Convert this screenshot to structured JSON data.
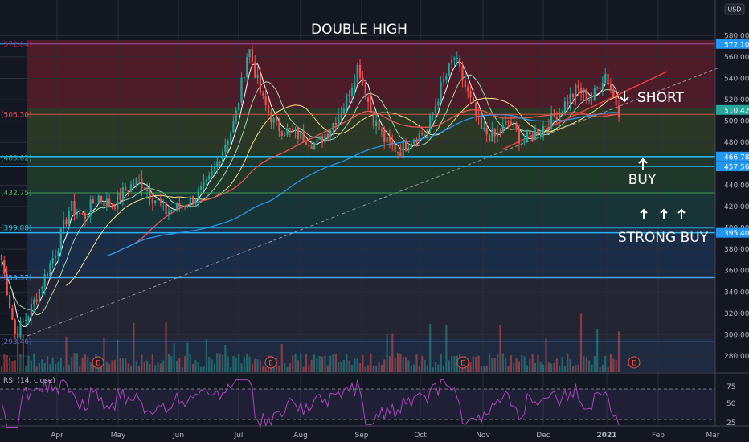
{
  "chart_data": {
    "type": "candlestick",
    "title": "DOUBLE HIGH",
    "currency": "USD",
    "y_ticks": [
      280,
      300,
      320,
      340,
      360,
      380,
      400,
      420,
      440,
      460,
      480,
      500,
      520,
      540,
      560,
      580
    ],
    "ylim": [
      265,
      587
    ],
    "x_labels": [
      "Apr",
      "May",
      "Jun",
      "Jul",
      "Aug",
      "Sep",
      "Oct",
      "Nov",
      "Dec",
      "2021",
      "Feb",
      "Mar"
    ],
    "fib_levels": [
      {
        "label": "(572.04)",
        "value": 572.04,
        "color": "#c2185b"
      },
      {
        "label": "(506.30)",
        "value": 506.3,
        "color": "#ef5350"
      },
      {
        "label": "(465.62)",
        "value": 465.62,
        "color": "#26a69a"
      },
      {
        "label": "(432.75)",
        "value": 432.75,
        "color": "#4caf50"
      },
      {
        "label": "(399.88)",
        "value": 399.88,
        "color": "#26c6da"
      },
      {
        "label": "(353.37)",
        "value": 353.37,
        "color": "#42a5f5"
      },
      {
        "label": "(293.46)",
        "value": 293.46,
        "color": "#5c6bc0"
      }
    ],
    "price_labels": [
      {
        "text": "572.10",
        "value": 572.1,
        "color": "#2196f3"
      },
      {
        "text": "510.42",
        "value": 510.42,
        "color": "#26a69a"
      },
      {
        "text": "466.78",
        "value": 466.78,
        "color": "#2196f3"
      },
      {
        "text": "457.56",
        "value": 457.56,
        "color": "#2196f3"
      },
      {
        "text": "395.40",
        "value": 395.4,
        "color": "#2196f3"
      }
    ],
    "horizontal_lines": [
      572.1,
      466.78,
      457.56,
      395.4,
      353.37
    ],
    "annotations": [
      {
        "text": "SHORT",
        "arrow": "down"
      },
      {
        "text": "BUY",
        "arrow": "up"
      },
      {
        "text": "STRONG BUY",
        "arrow": "up3"
      }
    ],
    "price_series": [
      [
        "Mar 2",
        370
      ],
      [
        "Mar 16",
        300
      ],
      [
        "Mar 23",
        320
      ],
      [
        "Mar 30",
        350
      ],
      [
        "Apr 6",
        380
      ],
      [
        "Apr 13",
        420
      ],
      [
        "Apr 20",
        410
      ],
      [
        "Apr 27",
        430
      ],
      [
        "May 4",
        420
      ],
      [
        "May 11",
        435
      ],
      [
        "May 18",
        445
      ],
      [
        "May 25",
        430
      ],
      [
        "Jun 1",
        415
      ],
      [
        "Jun 8",
        420
      ],
      [
        "Jun 15",
        428
      ],
      [
        "Jun 22",
        440
      ],
      [
        "Jun 29",
        470
      ],
      [
        "Jul 6",
        500
      ],
      [
        "Jul 10",
        570
      ],
      [
        "Jul 13",
        520
      ],
      [
        "Jul 20",
        495
      ],
      [
        "Jul 27",
        490
      ],
      [
        "Aug 3",
        485
      ],
      [
        "Aug 10",
        478
      ],
      [
        "Aug 17",
        495
      ],
      [
        "Aug 24",
        515
      ],
      [
        "Sep 1",
        553
      ],
      [
        "Sep 8",
        505
      ],
      [
        "Sep 15",
        480
      ],
      [
        "Sep 22",
        472
      ],
      [
        "Sep 29",
        485
      ],
      [
        "Oct 6",
        490
      ],
      [
        "Oct 13",
        530
      ],
      [
        "Oct 20",
        560
      ],
      [
        "Oct 27",
        525
      ],
      [
        "Nov 2",
        490
      ],
      [
        "Nov 9",
        485
      ],
      [
        "Nov 16",
        500
      ],
      [
        "Nov 23",
        480
      ],
      [
        "Nov 30",
        490
      ],
      [
        "Dec 7",
        500
      ],
      [
        "Dec 14",
        515
      ],
      [
        "Dec 21",
        530
      ],
      [
        "Dec 28",
        520
      ],
      [
        "Jan 4",
        545
      ],
      [
        "Jan 8",
        510
      ]
    ],
    "rsi": {
      "label": "RSI (14, close)",
      "ticks": [
        25,
        50,
        75
      ],
      "upper": 70,
      "lower": 30
    }
  }
}
